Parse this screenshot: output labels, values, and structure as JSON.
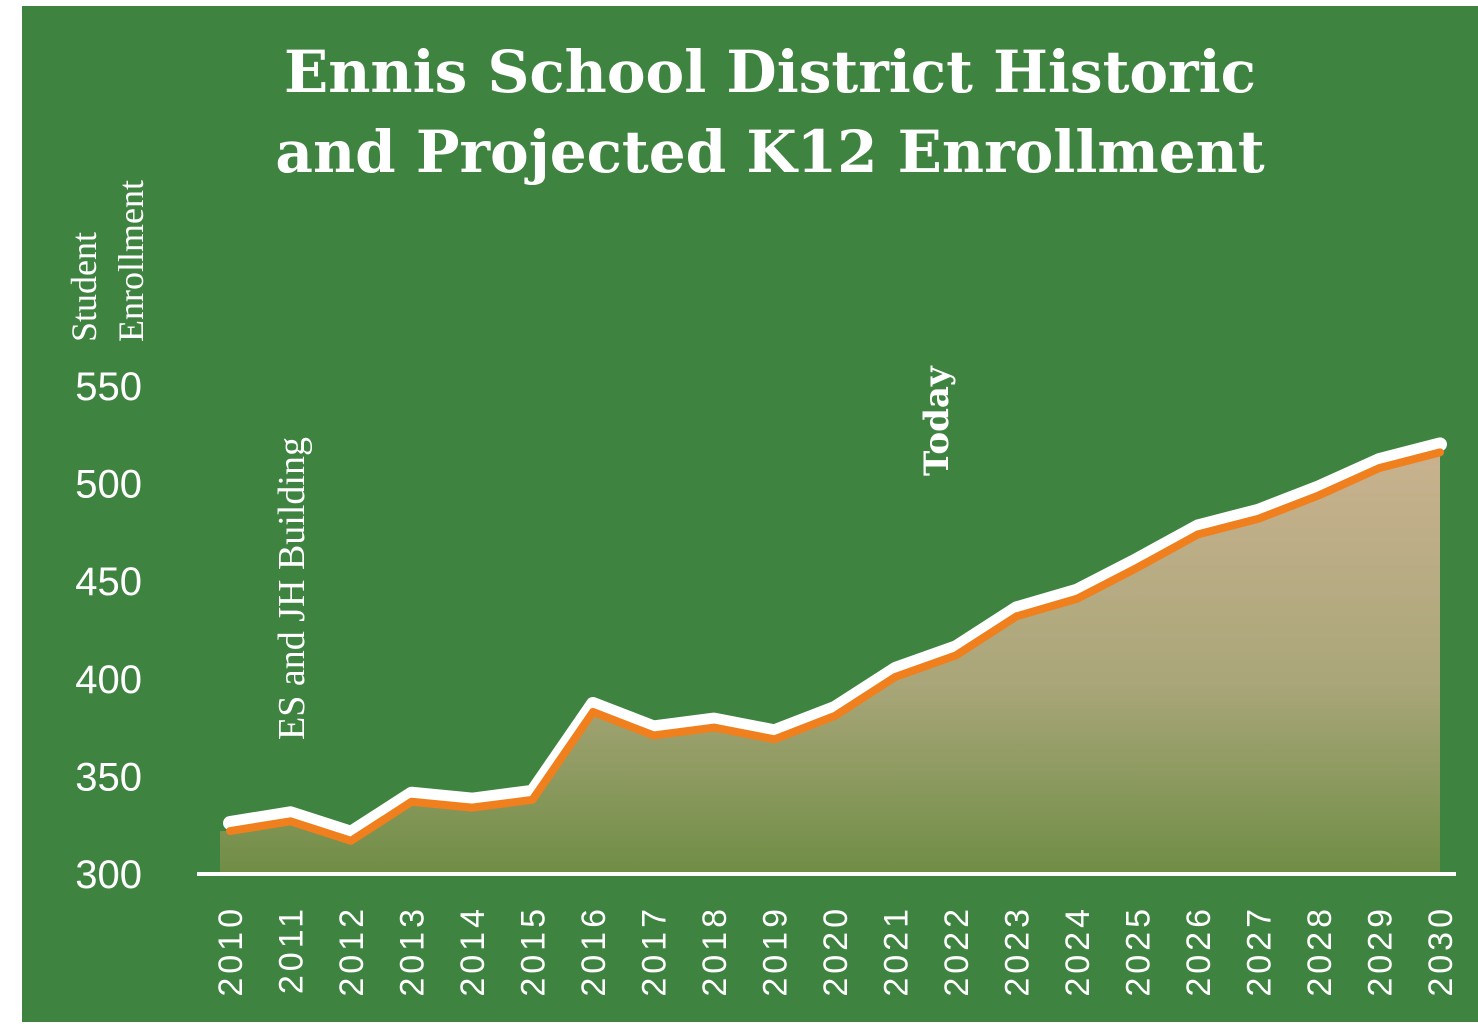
{
  "chart_data": {
    "type": "line",
    "title": [
      "Ennis School District Historic",
      "and Projected K12 Enrollment"
    ],
    "y_label": [
      "Student",
      "Enrollment"
    ],
    "annotations": [
      "ES and JH Building",
      "Today"
    ],
    "categories": [
      "2010",
      "2011",
      "2012",
      "2013",
      "2014",
      "2015",
      "2016",
      "2017",
      "2018",
      "2019",
      "2020",
      "2021",
      "2022",
      "2023",
      "2024",
      "2025",
      "2026",
      "2027",
      "2028",
      "2029",
      "2030"
    ],
    "values": [
      322,
      327,
      317,
      337,
      334,
      338,
      383,
      371,
      375,
      369,
      381,
      401,
      412,
      432,
      441,
      457,
      474,
      482,
      494,
      508,
      516
    ],
    "color": "#f07f1e",
    "ylim": [
      300,
      550
    ],
    "yticks": [
      300,
      350,
      400,
      450,
      500,
      550
    ]
  }
}
